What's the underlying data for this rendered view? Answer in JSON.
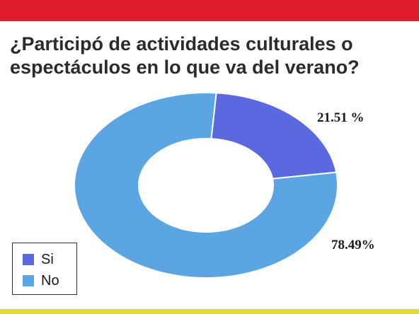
{
  "header": {
    "title_line1": "¿Participó de actividades culturales o",
    "title_line2": "espectáculos en lo que va del verano?"
  },
  "colors": {
    "top_bar": "#e01b2e",
    "bottom_bar": "#e5d83a",
    "si": "#5b68e0",
    "no": "#5aa5e2"
  },
  "chart_data": {
    "type": "pie",
    "variant": "donut",
    "title": "¿Participó de actividades culturales o espectáculos en lo que va del verano?",
    "categories": [
      "Si",
      "No"
    ],
    "values": [
      21.51,
      78.49
    ],
    "data_labels": [
      "21.51 %",
      "78.49%"
    ],
    "legend": [
      "Si",
      "No"
    ],
    "legend_position": "bottom-left"
  }
}
